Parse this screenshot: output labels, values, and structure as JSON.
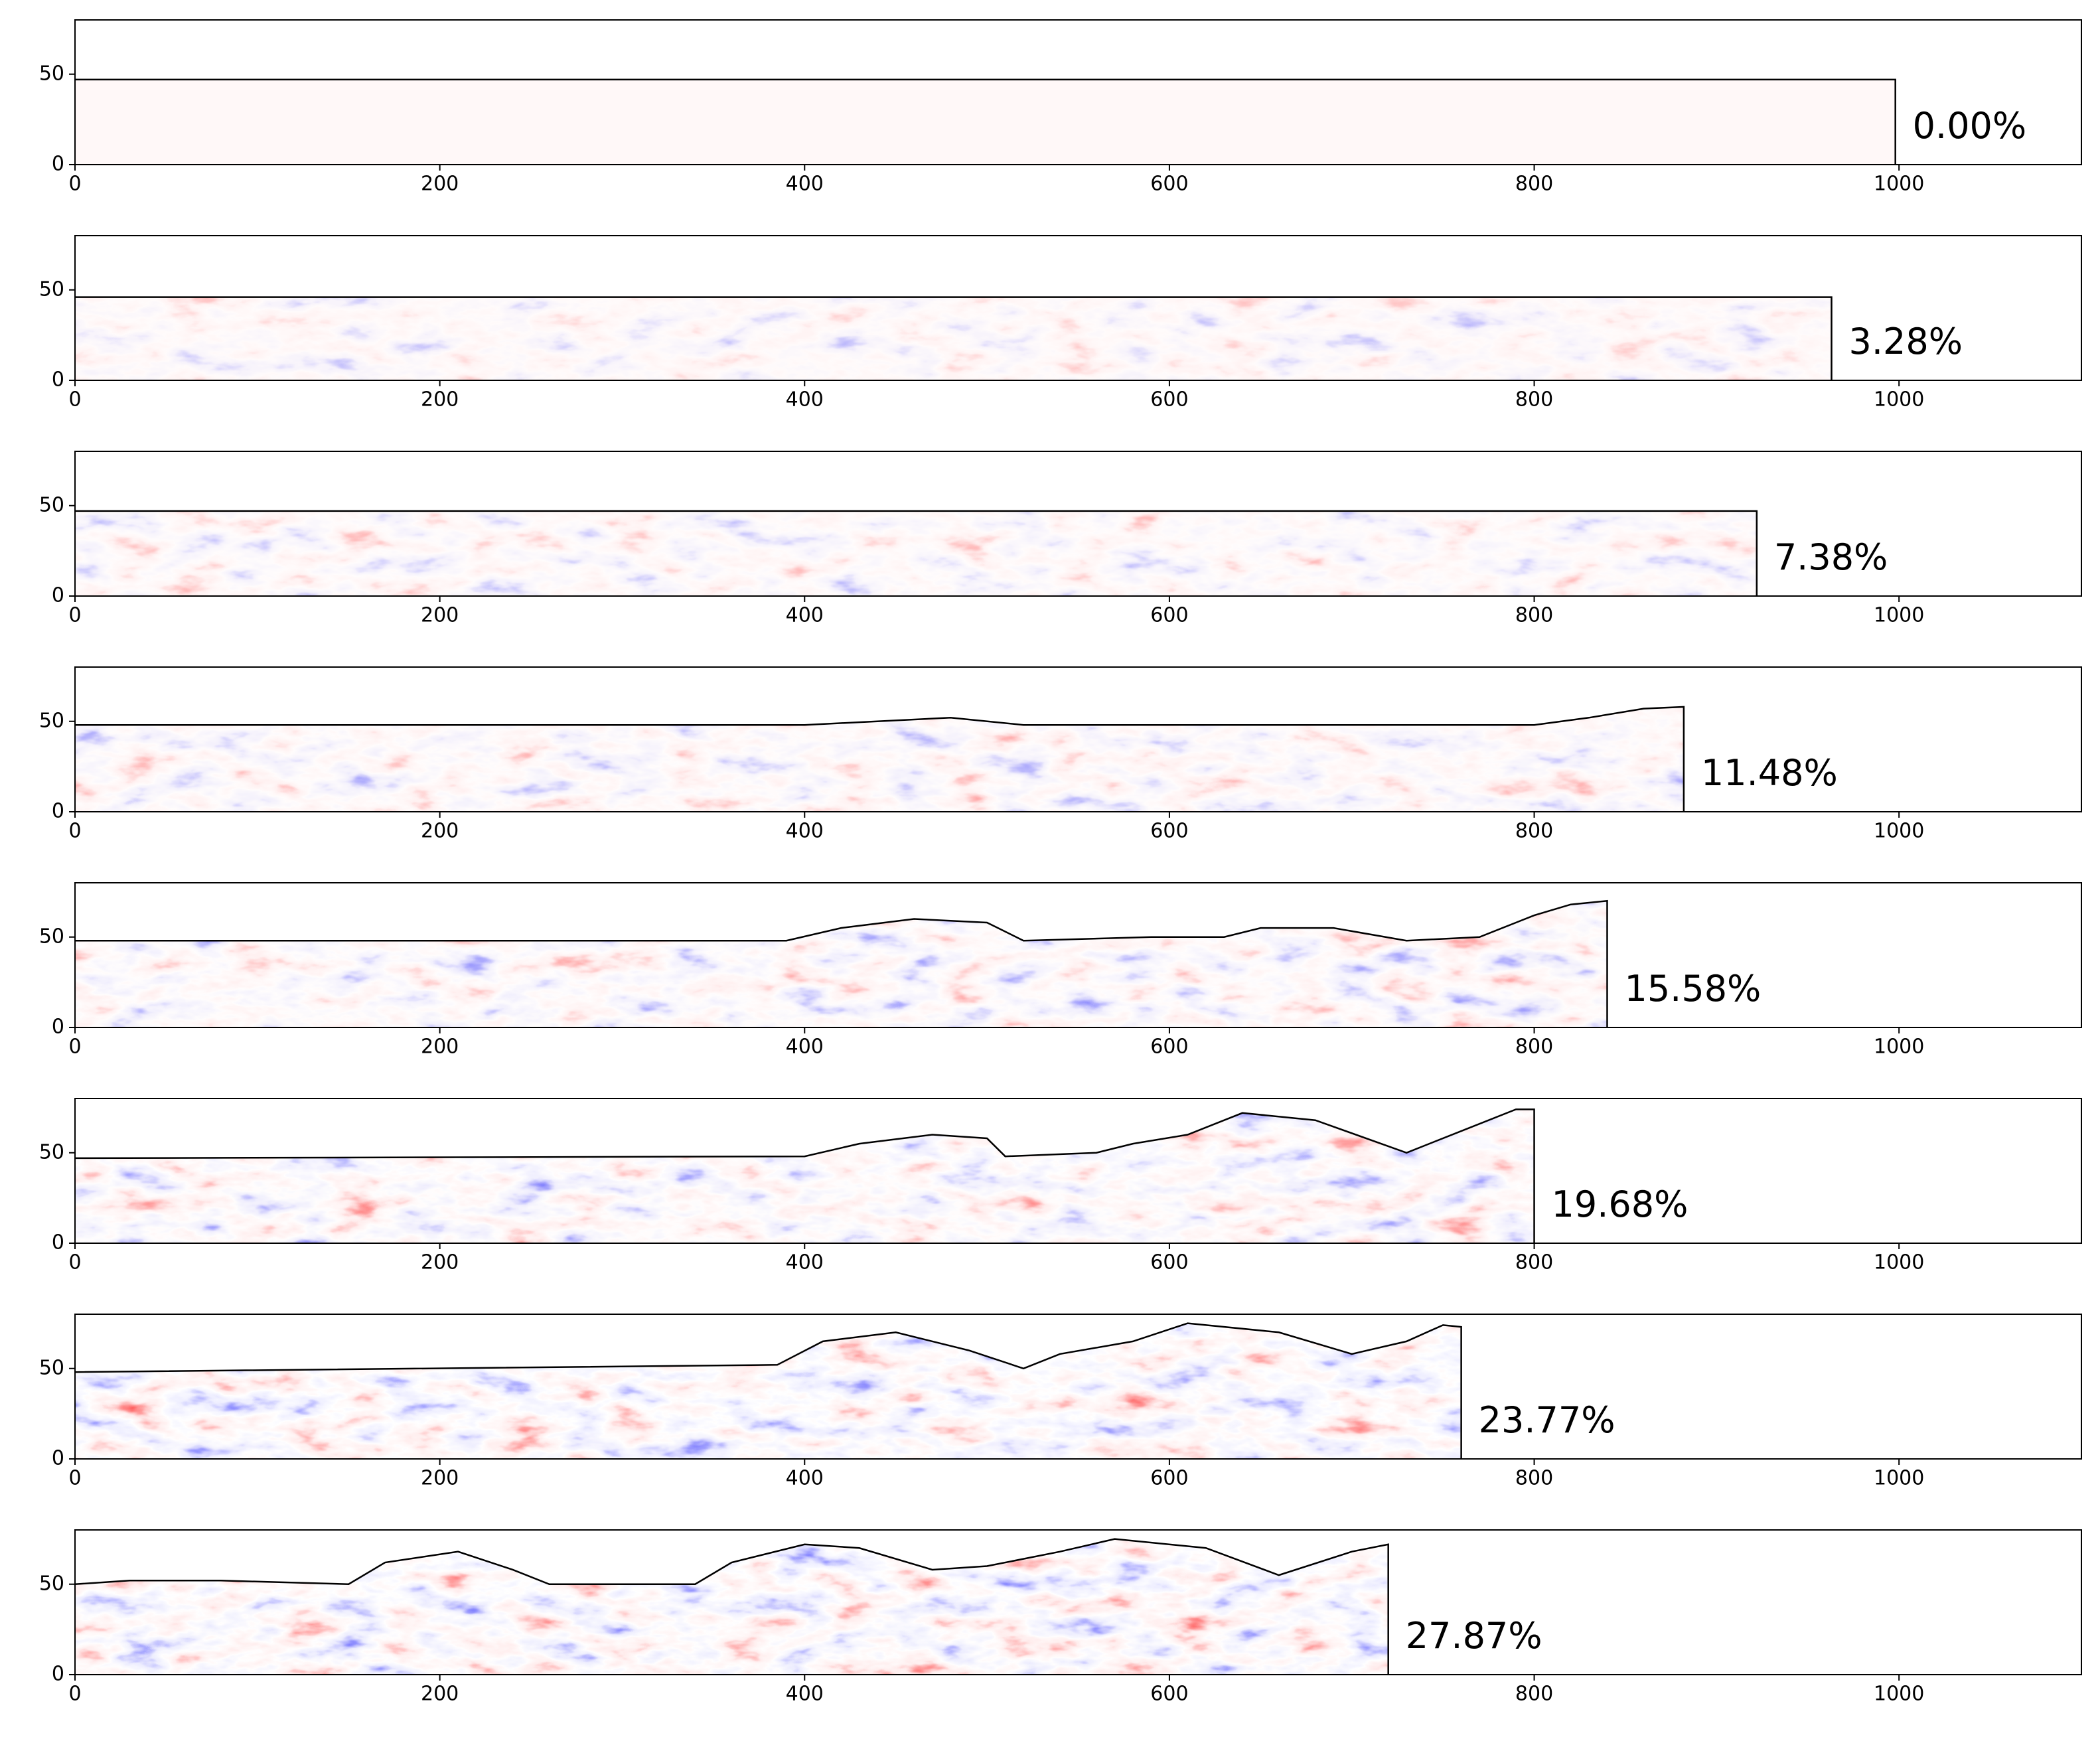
{
  "chart_data": [
    {
      "type": "line",
      "annotation": "0.00%",
      "color": "#000000",
      "x": [
        0,
        998,
        998
      ],
      "y": [
        47,
        47,
        0
      ],
      "xlim": [
        0,
        1100
      ],
      "ylim": [
        0,
        80
      ],
      "xticks": [
        0,
        200,
        400,
        600,
        800,
        1000
      ],
      "yticks": [
        0,
        50
      ]
    },
    {
      "type": "line",
      "annotation": "3.28%",
      "color": "#000000",
      "x": [
        0,
        963,
        963
      ],
      "y": [
        46,
        46,
        0
      ],
      "xlim": [
        0,
        1100
      ],
      "ylim": [
        0,
        80
      ],
      "xticks": [
        0,
        200,
        400,
        600,
        800,
        1000
      ],
      "yticks": [
        0,
        50
      ]
    },
    {
      "type": "line",
      "annotation": "7.38%",
      "color": "#000000",
      "x": [
        0,
        922,
        922
      ],
      "y": [
        47,
        47,
        0
      ],
      "xlim": [
        0,
        1100
      ],
      "ylim": [
        0,
        80
      ],
      "xticks": [
        0,
        200,
        400,
        600,
        800,
        1000
      ],
      "yticks": [
        0,
        50
      ]
    },
    {
      "type": "line",
      "annotation": "11.48%",
      "color": "#000000",
      "x": [
        0,
        400,
        440,
        480,
        520,
        800,
        830,
        860,
        882,
        882
      ],
      "y": [
        48,
        48,
        50,
        52,
        48,
        48,
        52,
        57,
        58,
        0
      ],
      "xlim": [
        0,
        1100
      ],
      "ylim": [
        0,
        80
      ],
      "xticks": [
        0,
        200,
        400,
        600,
        800,
        1000
      ],
      "yticks": [
        0,
        50
      ]
    },
    {
      "type": "line",
      "annotation": "15.58%",
      "color": "#000000",
      "x": [
        0,
        390,
        420,
        460,
        500,
        520,
        590,
        630,
        650,
        690,
        730,
        770,
        800,
        820,
        840,
        840
      ],
      "y": [
        48,
        48,
        55,
        60,
        58,
        48,
        50,
        50,
        55,
        55,
        48,
        50,
        62,
        68,
        70,
        0
      ],
      "xlim": [
        0,
        1100
      ],
      "ylim": [
        0,
        80
      ],
      "xticks": [
        0,
        200,
        400,
        600,
        800,
        1000
      ],
      "yticks": [
        0,
        50
      ]
    },
    {
      "type": "line",
      "annotation": "19.68%",
      "color": "#000000",
      "x": [
        0,
        400,
        430,
        470,
        500,
        510,
        560,
        580,
        610,
        640,
        680,
        730,
        760,
        790,
        800,
        800
      ],
      "y": [
        47,
        48,
        55,
        60,
        58,
        48,
        50,
        55,
        60,
        72,
        68,
        50,
        62,
        74,
        74,
        0
      ],
      "xlim": [
        0,
        1100
      ],
      "ylim": [
        0,
        80
      ],
      "xticks": [
        0,
        200,
        400,
        600,
        800,
        1000
      ],
      "yticks": [
        0,
        50
      ]
    },
    {
      "type": "line",
      "annotation": "23.77%",
      "color": "#000000",
      "x": [
        0,
        385,
        410,
        450,
        490,
        520,
        540,
        580,
        610,
        660,
        700,
        730,
        750,
        760,
        760
      ],
      "y": [
        48,
        52,
        65,
        70,
        60,
        50,
        58,
        65,
        75,
        70,
        58,
        65,
        74,
        73,
        0
      ],
      "xlim": [
        0,
        1100
      ],
      "ylim": [
        0,
        80
      ],
      "xticks": [
        0,
        200,
        400,
        600,
        800,
        1000
      ],
      "yticks": [
        0,
        50
      ]
    },
    {
      "type": "line",
      "annotation": "27.87%",
      "color": "#000000",
      "x": [
        0,
        30,
        80,
        150,
        170,
        210,
        240,
        260,
        340,
        360,
        400,
        430,
        470,
        500,
        540,
        570,
        620,
        660,
        700,
        720,
        720
      ],
      "y": [
        50,
        52,
        52,
        50,
        62,
        68,
        58,
        50,
        50,
        62,
        72,
        70,
        58,
        60,
        68,
        75,
        70,
        55,
        68,
        72,
        0
      ],
      "xlim": [
        0,
        1100
      ],
      "ylim": [
        0,
        80
      ],
      "xticks": [
        0,
        200,
        400,
        600,
        800,
        1000
      ],
      "yticks": [
        0,
        50
      ]
    }
  ]
}
